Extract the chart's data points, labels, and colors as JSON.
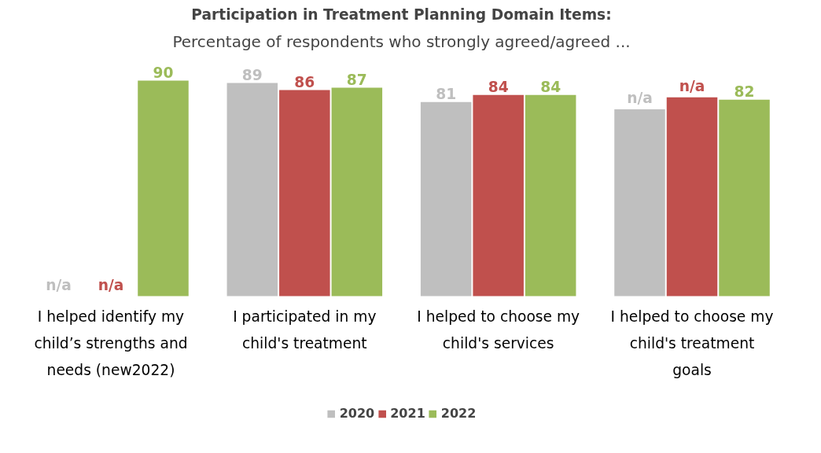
{
  "chart_data": {
    "type": "bar",
    "title": "Participation in Treatment Planning Domain Items:",
    "subtitle": "Percentage of respondents who strongly agreed/agreed ...",
    "categories": [
      "I helped identify my child’s strengths and needs (new2022)",
      "I participated in my child's treatment",
      "I helped to choose my child's services",
      "I helped to choose my child's treatment goals"
    ],
    "series": [
      {
        "name": "2020",
        "color": "#bfbfbf",
        "values": [
          null,
          89,
          81,
          78
        ],
        "value_labels": [
          "n/a",
          "89",
          "81",
          "n/a"
        ]
      },
      {
        "name": "2021",
        "color": "#c0504d",
        "values": [
          null,
          86,
          84,
          83
        ],
        "value_labels": [
          "n/a",
          "86",
          "84",
          "n/a"
        ]
      },
      {
        "name": "2022",
        "color": "#9bbb59",
        "values": [
          90,
          87,
          84,
          82
        ],
        "value_labels": [
          "90",
          "87",
          "84",
          "82"
        ]
      }
    ],
    "legend": "bottom"
  }
}
